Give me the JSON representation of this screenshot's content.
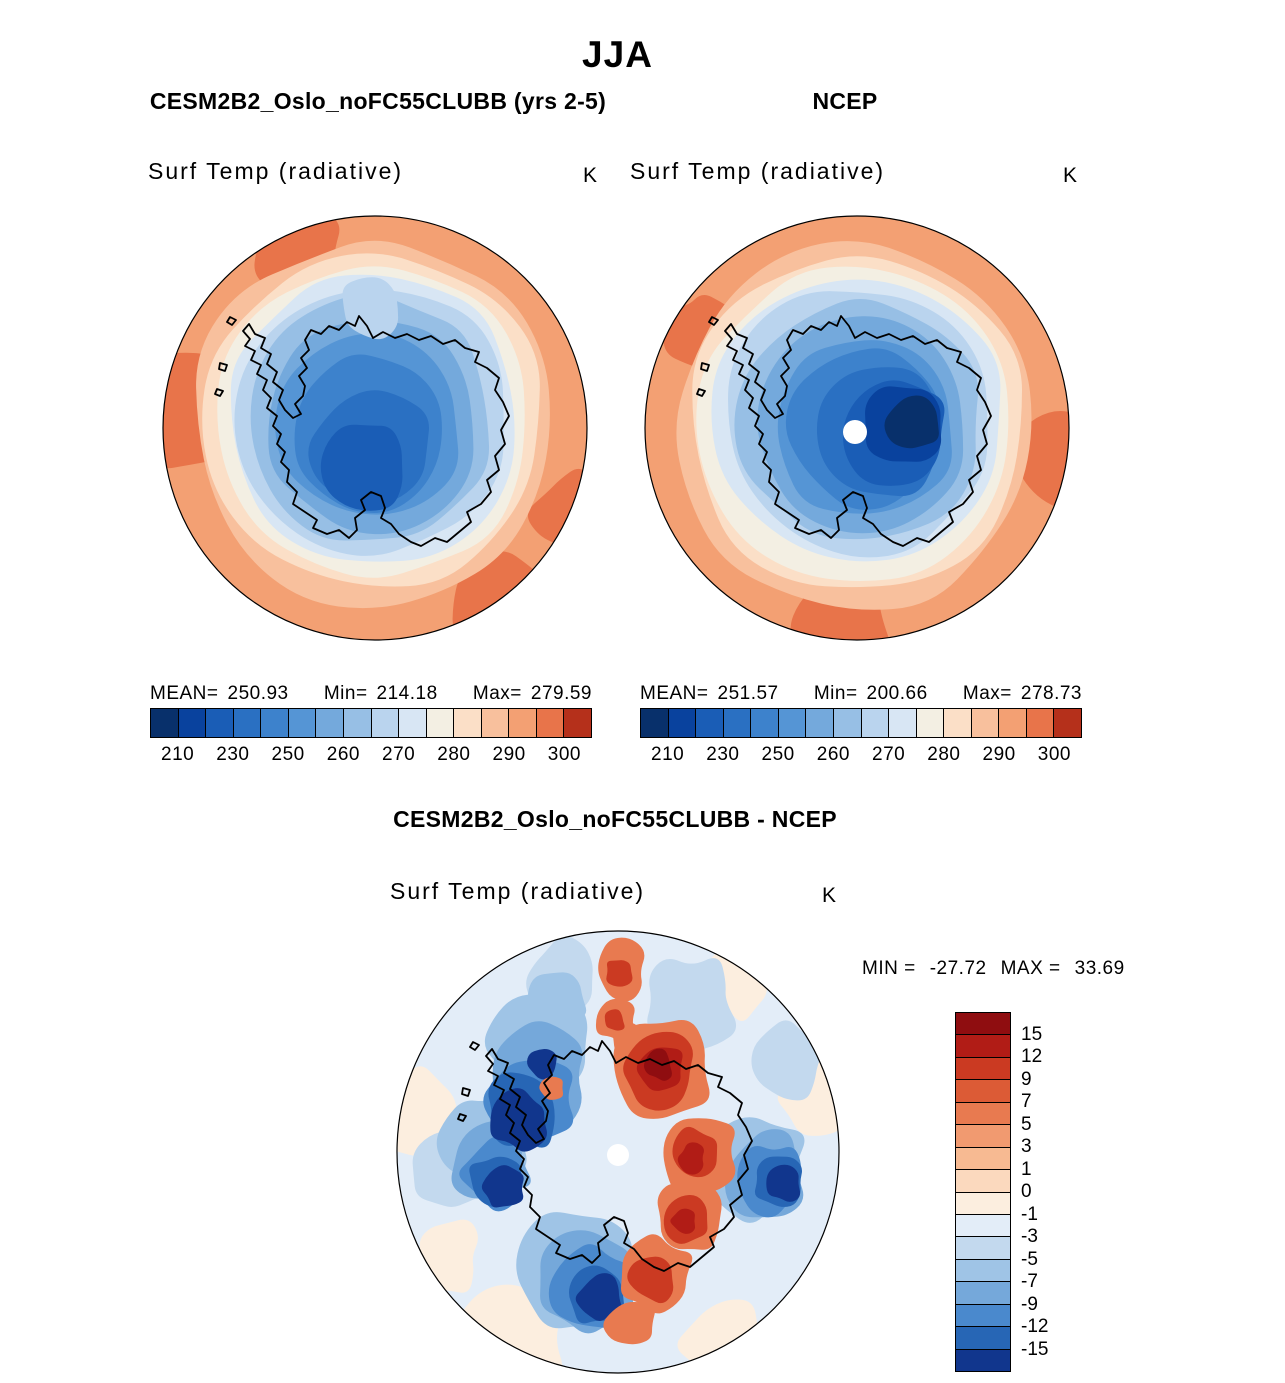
{
  "figure": {
    "season_title": "JJA"
  },
  "panels": {
    "model": {
      "title": "CESM2B2_Oslo_noFC55CLUBB (yrs 2-5)",
      "field_title": "Surf Temp (radiative)",
      "units": "K",
      "stats": {
        "mean_label": "MEAN=",
        "mean": "250.93",
        "min_label": "Min=",
        "min": "214.18",
        "max_label": "Max=",
        "max": "279.59"
      },
      "ticks": [
        "210",
        "230",
        "250",
        "260",
        "270",
        "280",
        "290",
        "300"
      ]
    },
    "ncep": {
      "title": "NCEP",
      "field_title": "Surf Temp (radiative)",
      "units": "K",
      "stats": {
        "mean_label": "MEAN=",
        "mean": "251.57",
        "min_label": "Min=",
        "min": "200.66",
        "max_label": "Max=",
        "max": "278.73"
      },
      "ticks": [
        "210",
        "230",
        "250",
        "260",
        "270",
        "280",
        "290",
        "300"
      ]
    },
    "diff": {
      "title": "CESM2B2_Oslo_noFC55CLUBB - NCEP",
      "field_title": "Surf Temp (radiative)",
      "units": "K",
      "stats": {
        "min_label": "MIN =",
        "min": "-27.72",
        "max_label": "MAX =",
        "max": "33.69"
      },
      "ticks": [
        "15",
        "12",
        "9",
        "7",
        "5",
        "3",
        "1",
        "0",
        "-1",
        "-3",
        "-5",
        "-7",
        "-9",
        "-12",
        "-15"
      ]
    }
  },
  "palette": {
    "temp": [
      "#08306B",
      "#09429E",
      "#1A5DB6",
      "#2A70C2",
      "#3D82CC",
      "#5595D5",
      "#74A9DC",
      "#97BFE5",
      "#BAD4EE",
      "#D8E6F4",
      "#F3EFE3",
      "#FBDFC7",
      "#F8C09D",
      "#F3A073",
      "#E8744A",
      "#B5301B"
    ],
    "diff": [
      "#8F0D10",
      "#B11C16",
      "#CB3A22",
      "#DC5B36",
      "#E87A50",
      "#F19A70",
      "#F7BA92",
      "#FBD9BE",
      "#FCEEDF",
      "#E3EDF8",
      "#C3D9EE",
      "#9FC4E6",
      "#75A8DA",
      "#4A89CD",
      "#2766B5",
      "#11368D"
    ]
  },
  "chart_data": [
    {
      "type": "heatmap",
      "panel": "top-left",
      "title": "CESM2B2_Oslo_noFC55CLUBB (yrs 2-5)",
      "variable": "Surf Temp (radiative)",
      "units": "K",
      "season": "JJA",
      "projection": "south polar stereographic",
      "region": "Antarctica",
      "stats": {
        "mean": 250.93,
        "min": 214.18,
        "max": 279.59
      },
      "colorbar": {
        "orientation": "horizontal",
        "tick_values": [
          210,
          230,
          250,
          260,
          270,
          280,
          290,
          300
        ],
        "n_colors": 16,
        "scheme": "blue-to-red"
      }
    },
    {
      "type": "heatmap",
      "panel": "top-right",
      "title": "NCEP",
      "variable": "Surf Temp (radiative)",
      "units": "K",
      "season": "JJA",
      "projection": "south polar stereographic",
      "region": "Antarctica",
      "stats": {
        "mean": 251.57,
        "min": 200.66,
        "max": 278.73
      },
      "colorbar": {
        "orientation": "horizontal",
        "tick_values": [
          210,
          230,
          250,
          260,
          270,
          280,
          290,
          300
        ],
        "n_colors": 16,
        "scheme": "blue-to-red"
      }
    },
    {
      "type": "heatmap",
      "panel": "bottom",
      "title": "CESM2B2_Oslo_noFC55CLUBB - NCEP",
      "variable": "Surf Temp (radiative)",
      "units": "K",
      "season": "JJA",
      "projection": "south polar stereographic",
      "region": "Antarctica",
      "stats": {
        "min": -27.72,
        "max": 33.69
      },
      "colorbar": {
        "orientation": "vertical",
        "tick_values": [
          15,
          12,
          9,
          7,
          5,
          3,
          1,
          0,
          -1,
          -3,
          -5,
          -7,
          -9,
          -12,
          -15
        ],
        "n_colors": 16,
        "scheme": "red-to-blue"
      }
    }
  ]
}
